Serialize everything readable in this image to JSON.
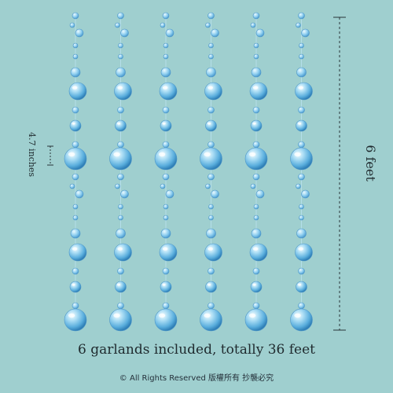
{
  "product": {
    "caption": "6 garlands included, totally 36 feet",
    "height_label": "6 feet",
    "spacing_label": "4.7 inches",
    "copyright": "© All Rights Reserved 版權所有 抄襲必究",
    "garland_count": 6
  },
  "colors": {
    "background": "#9fcfcf",
    "bead_light": "#cfeefa",
    "bead_mid": "#7cc3ea",
    "bead_dark": "#3d8fc4",
    "text": "#1f2a2e"
  }
}
